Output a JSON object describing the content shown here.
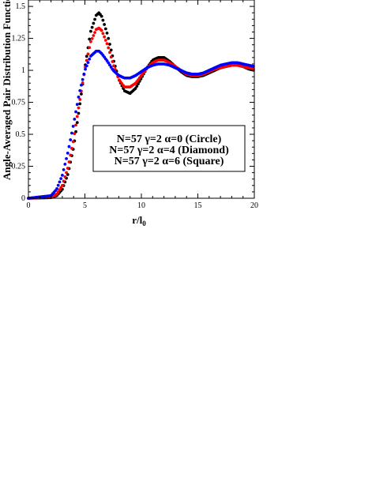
{
  "chart_data": {
    "type": "scatter",
    "xlabel": "r/l",
    "xlabel_subscript": "0",
    "ylabel": "Angle-Averaged Pair Distribution Function",
    "xlim": [
      0,
      20
    ],
    "ylim": [
      0,
      1.55
    ],
    "x_ticks": [
      0,
      5,
      10,
      15,
      20
    ],
    "y_ticks": [
      0,
      0.25,
      0.5,
      0.75,
      1,
      1.25,
      1.5
    ],
    "x_tick_labels": [
      "0",
      "5",
      "10",
      "15",
      "20"
    ],
    "y_tick_labels": [
      "0",
      "0.25",
      "0.5",
      "0.75",
      "1",
      "1.25",
      "1.5"
    ],
    "grid": false,
    "legend_position": "lower-right",
    "series": [
      {
        "name": "N=57 γ=2 α=0 (Circle)",
        "color": "#000000",
        "x": [
          0,
          2,
          2.5,
          3,
          3.5,
          4,
          4.5,
          5,
          5.5,
          6,
          6.25,
          6.5,
          7,
          7.5,
          8,
          8.5,
          9,
          9.5,
          10,
          10.5,
          11,
          11.5,
          12,
          12.5,
          13,
          13.5,
          14,
          14.5,
          15,
          15.5,
          16,
          16.5,
          17,
          17.5,
          18,
          18.5,
          19,
          19.5,
          20
        ],
        "y": [
          0,
          0.005,
          0.02,
          0.07,
          0.19,
          0.4,
          0.7,
          1.02,
          1.3,
          1.43,
          1.45,
          1.42,
          1.28,
          1.09,
          0.93,
          0.84,
          0.82,
          0.86,
          0.94,
          1.02,
          1.08,
          1.1,
          1.1,
          1.07,
          1.03,
          0.99,
          0.96,
          0.95,
          0.95,
          0.96,
          0.98,
          1.0,
          1.02,
          1.03,
          1.04,
          1.04,
          1.03,
          1.01,
          1.0
        ]
      },
      {
        "name": "N=57 γ=2 α=4 (Diamond)",
        "color": "#ff0000",
        "x": [
          0,
          2,
          2.5,
          3,
          3.5,
          4,
          4.5,
          5,
          5.5,
          6,
          6.25,
          6.5,
          7,
          7.5,
          8,
          8.5,
          9,
          9.5,
          10,
          10.5,
          11,
          11.5,
          12,
          12.5,
          13,
          13.5,
          14,
          14.5,
          15,
          15.5,
          16,
          16.5,
          17,
          17.5,
          18,
          18.5,
          19,
          19.5,
          20
        ],
        "y": [
          0,
          0.01,
          0.03,
          0.1,
          0.24,
          0.46,
          0.74,
          1.01,
          1.22,
          1.32,
          1.33,
          1.31,
          1.2,
          1.05,
          0.93,
          0.87,
          0.87,
          0.9,
          0.96,
          1.02,
          1.06,
          1.08,
          1.08,
          1.06,
          1.03,
          1.0,
          0.97,
          0.96,
          0.96,
          0.97,
          0.99,
          1.01,
          1.02,
          1.03,
          1.04,
          1.04,
          1.03,
          1.02,
          1.01
        ]
      },
      {
        "name": "N=57 γ=2 α=6 (Square)",
        "color": "#0000ff",
        "x": [
          0,
          2,
          2.5,
          3,
          3.5,
          4,
          4.5,
          5,
          5.5,
          6,
          6.25,
          6.5,
          7,
          7.5,
          8,
          8.5,
          9,
          9.5,
          10,
          10.5,
          11,
          11.5,
          12,
          12.5,
          13,
          13.5,
          14,
          14.5,
          15,
          15.5,
          16,
          16.5,
          17,
          17.5,
          18,
          18.5,
          19,
          19.5,
          20
        ],
        "y": [
          0,
          0.02,
          0.07,
          0.18,
          0.36,
          0.58,
          0.82,
          1.0,
          1.11,
          1.15,
          1.15,
          1.13,
          1.07,
          1.0,
          0.96,
          0.94,
          0.94,
          0.96,
          0.99,
          1.02,
          1.04,
          1.05,
          1.05,
          1.04,
          1.02,
          1.0,
          0.98,
          0.97,
          0.97,
          0.98,
          1.0,
          1.02,
          1.04,
          1.05,
          1.06,
          1.06,
          1.05,
          1.04,
          1.03
        ]
      }
    ]
  }
}
